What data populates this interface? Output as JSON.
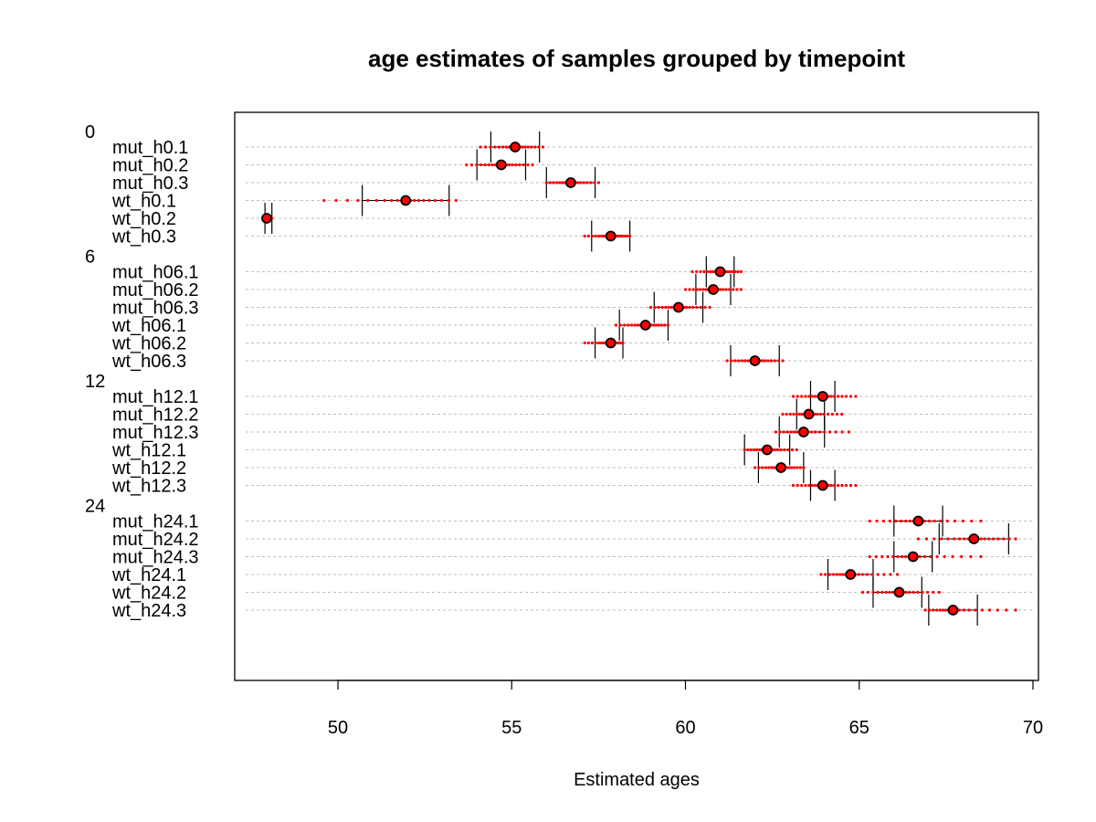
{
  "chart_data": {
    "type": "dotchart",
    "title": "age estimates of samples grouped by timepoint",
    "xlabel": "Estimated ages",
    "xlim": [
      47,
      70.1
    ],
    "xticks": [
      50,
      55,
      60,
      65,
      70
    ],
    "tick_labels": [
      "50",
      "55",
      "60",
      "65",
      "70"
    ],
    "grid": true,
    "colors": {
      "points": "#ff0000",
      "median": "#000000",
      "grid": "#bebebe"
    },
    "groups": [
      {
        "name": "0",
        "samples": [
          {
            "label": "mut_h0.1",
            "center": 55.1,
            "lo": 54.4,
            "hi": 55.8,
            "spread": [
              54.1,
              55.9
            ]
          },
          {
            "label": "mut_h0.2",
            "center": 54.7,
            "lo": 54.0,
            "hi": 55.4,
            "spread": [
              53.7,
              55.6
            ]
          },
          {
            "label": "mut_h0.3",
            "center": 56.7,
            "lo": 56.0,
            "hi": 57.4,
            "spread": [
              56.0,
              57.5
            ]
          },
          {
            "label": "wt_h0.1",
            "center": 51.95,
            "lo": 50.7,
            "hi": 53.2,
            "spread": [
              49.6,
              53.4
            ]
          },
          {
            "label": "wt_h0.2",
            "center": 47.95,
            "lo": 47.9,
            "hi": 48.1,
            "spread": [
              47.9,
              48.1
            ]
          },
          {
            "label": "wt_h0.3",
            "center": 57.85,
            "lo": 57.3,
            "hi": 58.4,
            "spread": [
              57.1,
              58.4
            ]
          }
        ]
      },
      {
        "name": "6",
        "samples": [
          {
            "label": "mut_h06.1",
            "center": 61.0,
            "lo": 60.6,
            "hi": 61.4,
            "spread": [
              60.2,
              61.6
            ]
          },
          {
            "label": "mut_h06.2",
            "center": 60.8,
            "lo": 60.3,
            "hi": 61.3,
            "spread": [
              60.0,
              61.6
            ]
          },
          {
            "label": "mut_h06.3",
            "center": 59.8,
            "lo": 59.1,
            "hi": 60.5,
            "spread": [
              59.0,
              60.7
            ]
          },
          {
            "label": "wt_h06.1",
            "center": 58.85,
            "lo": 58.1,
            "hi": 59.5,
            "spread": [
              58.0,
              59.5
            ]
          },
          {
            "label": "wt_h06.2",
            "center": 57.85,
            "lo": 57.4,
            "hi": 58.2,
            "spread": [
              57.1,
              58.2
            ]
          },
          {
            "label": "wt_h06.3",
            "center": 62.0,
            "lo": 61.3,
            "hi": 62.7,
            "spread": [
              61.2,
              62.8
            ]
          }
        ]
      },
      {
        "name": "12",
        "samples": [
          {
            "label": "mut_h12.1",
            "center": 63.95,
            "lo": 63.6,
            "hi": 64.3,
            "spread": [
              63.1,
              64.9
            ]
          },
          {
            "label": "mut_h12.2",
            "center": 63.55,
            "lo": 63.2,
            "hi": 64.0,
            "spread": [
              62.8,
              64.5
            ]
          },
          {
            "label": "mut_h12.3",
            "center": 63.4,
            "lo": 62.7,
            "hi": 64.0,
            "spread": [
              62.6,
              64.7
            ]
          },
          {
            "label": "wt_h12.1",
            "center": 62.35,
            "lo": 61.7,
            "hi": 63.0,
            "spread": [
              61.7,
              63.2
            ]
          },
          {
            "label": "wt_h12.2",
            "center": 62.75,
            "lo": 62.1,
            "hi": 63.4,
            "spread": [
              62.0,
              63.4
            ]
          },
          {
            "label": "wt_h12.3",
            "center": 63.95,
            "lo": 63.6,
            "hi": 64.3,
            "spread": [
              63.1,
              64.9
            ]
          }
        ]
      },
      {
        "name": "24",
        "samples": [
          {
            "label": "mut_h24.1",
            "center": 66.7,
            "lo": 66.0,
            "hi": 67.4,
            "spread": [
              65.3,
              68.5
            ]
          },
          {
            "label": "mut_h24.2",
            "center": 68.3,
            "lo": 67.3,
            "hi": 69.3,
            "spread": [
              66.7,
              69.5
            ]
          },
          {
            "label": "mut_h24.3",
            "center": 66.55,
            "lo": 66.0,
            "hi": 67.1,
            "spread": [
              65.3,
              68.5
            ]
          },
          {
            "label": "wt_h24.1",
            "center": 64.75,
            "lo": 64.1,
            "hi": 65.4,
            "spread": [
              63.9,
              66.1
            ]
          },
          {
            "label": "wt_h24.2",
            "center": 66.15,
            "lo": 65.4,
            "hi": 66.8,
            "spread": [
              65.1,
              67.3
            ]
          },
          {
            "label": "wt_h24.3",
            "center": 67.7,
            "lo": 67.0,
            "hi": 68.4,
            "spread": [
              66.9,
              69.5
            ]
          }
        ]
      }
    ]
  }
}
